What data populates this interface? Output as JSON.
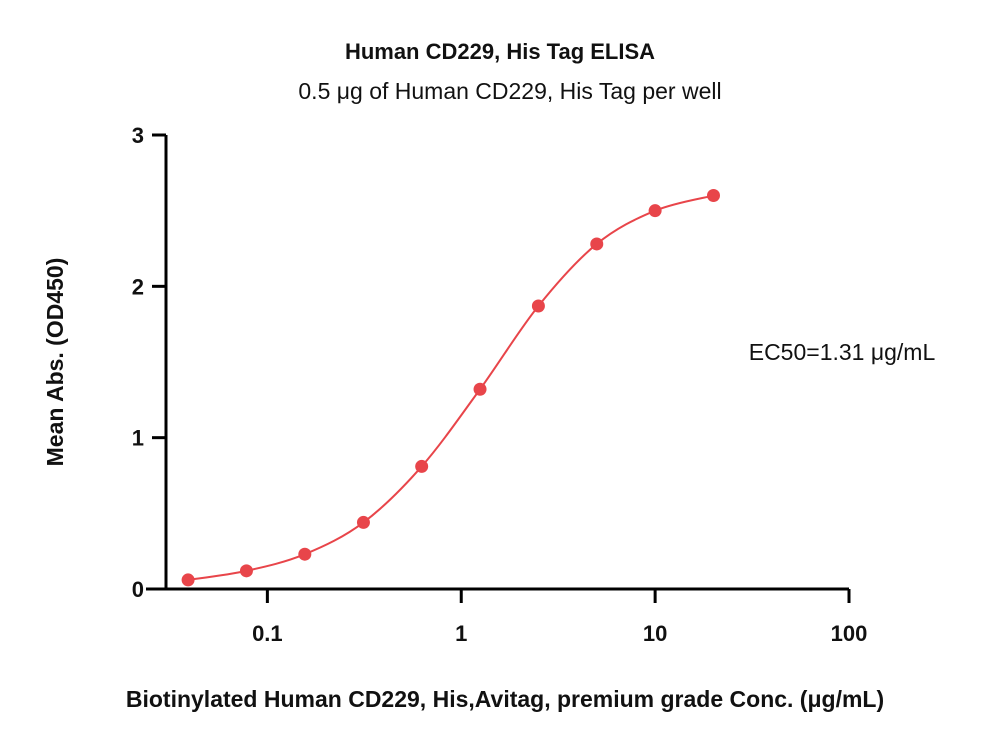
{
  "chart_data": {
    "type": "line",
    "title": "Human CD229, His Tag ELISA",
    "subtitle": "0.5 μg of Human CD229, His Tag per well",
    "xlabel": "Biotinylated Human CD229, His,Avitag, premium grade Conc. (μg/mL)",
    "ylabel": "Mean Abs. (OD450)",
    "xscale": "log",
    "xlim": [
      0.03,
      100
    ],
    "ylim": [
      0,
      3
    ],
    "xticks": [
      0.1,
      1,
      10,
      100
    ],
    "xtick_labels": [
      "0.1",
      "1",
      "10",
      "100"
    ],
    "yticks": [
      0,
      1,
      2,
      3
    ],
    "ytick_labels": [
      "0",
      "1",
      "2",
      "3"
    ],
    "grid": false,
    "color": "#e8454a",
    "points": [
      {
        "x": 0.039,
        "y": 0.06
      },
      {
        "x": 0.078,
        "y": 0.12
      },
      {
        "x": 0.156,
        "y": 0.23
      },
      {
        "x": 0.313,
        "y": 0.44
      },
      {
        "x": 0.625,
        "y": 0.81
      },
      {
        "x": 1.25,
        "y": 1.32
      },
      {
        "x": 2.5,
        "y": 1.87
      },
      {
        "x": 5,
        "y": 2.28
      },
      {
        "x": 10,
        "y": 2.5
      },
      {
        "x": 20,
        "y": 2.6
      }
    ],
    "annotation": "EC50=1.31 μg/mL"
  }
}
